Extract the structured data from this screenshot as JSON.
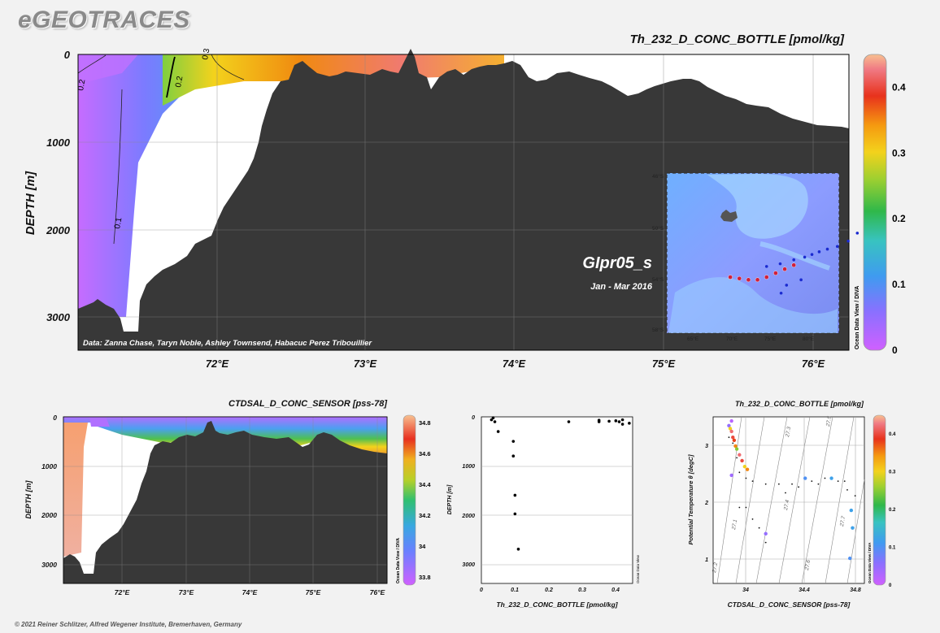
{
  "app": {
    "brand": "eGEOTRACES",
    "copyright": "© 2021 Reiner Schlitzer, Alfred Wegener Institute, Bremerhaven, Germany"
  },
  "odv_label": "Ocean Data View / DIVA",
  "odv_label_short": "Ocean Data View",
  "chart_data": [
    {
      "type": "heatmap",
      "id": "main-section",
      "title": "Th_232_D_CONC_BOTTLE [pmol/kg]",
      "ylabel": "DEPTH [m]",
      "xlim": [
        71.0,
        76.3
      ],
      "ylim": [
        3400,
        0
      ],
      "x_ticks": [
        "72°E",
        "73°E",
        "74°E",
        "75°E",
        "76°E"
      ],
      "x_tick_values": [
        72,
        73,
        74,
        75,
        76
      ],
      "y_ticks": [
        "0",
        "1000",
        "2000",
        "3000"
      ],
      "y_tick_values": [
        0,
        1000,
        2000,
        3000
      ],
      "colorbar": {
        "min": 0,
        "max": 0.45,
        "ticks": [
          "0",
          "0.1",
          "0.2",
          "0.3",
          "0.4"
        ],
        "tick_values": [
          0,
          0.1,
          0.2,
          0.3,
          0.4
        ]
      },
      "contour_labels": [
        "0.1",
        "0.2",
        "0.3",
        "0.2"
      ],
      "credit": "Data: Zanna Chase, Taryn Noble, Ashley Townsend, Habacuc Perez Tribouillier",
      "section_name": "GIpr05_s",
      "section_dates": "Jan - Mar 2016",
      "inset_map": {
        "lat_labels": [
          "46°S",
          "50°S",
          "54°S",
          "58°S"
        ],
        "lon_labels": [
          "65°E",
          "70°E",
          "75°E",
          "80°E"
        ],
        "stations_blue": [
          [
            85.3,
            49.3
          ],
          [
            84.0,
            50.5
          ],
          [
            83.0,
            51.1
          ],
          [
            81.8,
            51.5
          ],
          [
            80.7,
            51.7
          ],
          [
            79.8,
            51.9
          ],
          [
            79.0,
            52.1
          ],
          [
            78.2,
            52.3
          ],
          [
            77.0,
            52.5
          ],
          [
            75.5,
            52.8
          ],
          [
            74.0,
            53.0
          ],
          [
            77.8,
            54.0
          ],
          [
            76.2,
            54.4
          ],
          [
            75.6,
            55.0
          ]
        ],
        "stations_red": [
          [
            70.0,
            53.8
          ],
          [
            71.0,
            53.9
          ],
          [
            72.0,
            54.0
          ],
          [
            73.0,
            54.0
          ],
          [
            74.0,
            53.8
          ],
          [
            75.0,
            53.5
          ],
          [
            76.0,
            53.2
          ],
          [
            77.0,
            52.9
          ]
        ]
      }
    },
    {
      "type": "heatmap",
      "id": "salinity-section",
      "title": "CTDSAL_D_CONC_SENSOR [pss-78]",
      "ylabel": "DEPTH [m]",
      "xlim": [
        71.0,
        76.3
      ],
      "ylim": [
        3400,
        0
      ],
      "x_ticks": [
        "72°E",
        "73°E",
        "74°E",
        "75°E",
        "76°E"
      ],
      "x_tick_values": [
        72,
        73,
        74,
        75,
        76
      ],
      "y_ticks": [
        "0",
        "1000",
        "2000",
        "3000"
      ],
      "y_tick_values": [
        0,
        1000,
        2000,
        3000
      ],
      "colorbar": {
        "min": 33.75,
        "max": 34.85,
        "ticks": [
          "33.8",
          "34",
          "34.2",
          "34.4",
          "34.6",
          "34.8"
        ],
        "tick_values": [
          33.8,
          34.0,
          34.2,
          34.4,
          34.6,
          34.8
        ]
      }
    },
    {
      "type": "scatter",
      "id": "profile",
      "xlabel": "Th_232_D_CONC_BOTTLE [pmol/kg]",
      "ylabel": "DEPTH [m]",
      "xlim": [
        0,
        0.45
      ],
      "ylim": [
        3400,
        0
      ],
      "x_ticks": [
        "0",
        "0.1",
        "0.2",
        "0.3",
        "0.4"
      ],
      "x_tick_values": [
        0,
        0.1,
        0.2,
        0.3,
        0.4
      ],
      "y_ticks": [
        "0",
        "1000",
        "2000",
        "3000"
      ],
      "y_tick_values": [
        0,
        1000,
        2000,
        3000
      ],
      "points": [
        [
          0.03,
          60
        ],
        [
          0.035,
          20
        ],
        [
          0.04,
          100
        ],
        [
          0.05,
          300
        ],
        [
          0.095,
          500
        ],
        [
          0.095,
          800
        ],
        [
          0.1,
          1600
        ],
        [
          0.1,
          1980
        ],
        [
          0.11,
          2700
        ],
        [
          0.26,
          100
        ],
        [
          0.35,
          70
        ],
        [
          0.35,
          100
        ],
        [
          0.38,
          90
        ],
        [
          0.4,
          80
        ],
        [
          0.41,
          100
        ],
        [
          0.42,
          60
        ],
        [
          0.42,
          150
        ],
        [
          0.44,
          130
        ]
      ]
    },
    {
      "type": "scatter",
      "id": "ts-diagram",
      "title": "Th_232_D_CONC_BOTTLE [pmol/kg]",
      "xlabel": "CTDSAL_D_CONC_SENSOR [pss-78]",
      "ylabel": "Potential Temperature θ [degC]",
      "xlim": [
        33.7,
        34.85
      ],
      "ylim": [
        0.5,
        3.35
      ],
      "x_ticks": [
        "34",
        "34.4",
        "34.8"
      ],
      "x_tick_values": [
        34.0,
        34.4,
        34.8
      ],
      "y_ticks": [
        "1",
        "2",
        "3"
      ],
      "y_tick_values": [
        1,
        2,
        3
      ],
      "density_labels": [
        "27.1",
        "27.2",
        "27.3",
        "27.4",
        "27.5",
        "27.6",
        "27.7"
      ],
      "colorbar": {
        "min": 0,
        "max": 0.45,
        "ticks": [
          "0",
          "0.1",
          "0.2",
          "0.3",
          "0.4"
        ],
        "tick_values": [
          0,
          0.1,
          0.2,
          0.3,
          0.4
        ]
      },
      "points": [
        [
          33.82,
          3.2,
          0.05
        ],
        [
          33.83,
          3.15,
          0.3
        ],
        [
          33.84,
          3.1,
          0.42
        ],
        [
          33.85,
          3.0,
          0.4
        ],
        [
          33.86,
          2.95,
          0.38
        ],
        [
          33.87,
          2.85,
          0.35
        ],
        [
          33.88,
          2.8,
          0.25
        ],
        [
          33.9,
          2.7,
          0.42
        ],
        [
          33.92,
          2.6,
          0.4
        ],
        [
          33.94,
          2.5,
          0.3
        ],
        [
          33.96,
          2.45,
          0.35
        ],
        [
          34.4,
          2.3,
          0.1
        ],
        [
          34.6,
          2.3,
          0.12
        ],
        [
          34.75,
          1.75,
          0.12
        ],
        [
          34.76,
          1.45,
          0.12
        ],
        [
          34.74,
          0.93,
          0.1
        ],
        [
          33.84,
          2.35,
          0.04
        ],
        [
          34.1,
          1.35,
          0.05
        ],
        [
          33.84,
          3.28,
          0.02
        ]
      ],
      "small_points": [
        [
          33.82,
          3.0
        ],
        [
          33.85,
          2.9
        ],
        [
          33.88,
          2.65
        ],
        [
          33.9,
          2.4
        ],
        [
          33.95,
          2.3
        ],
        [
          34.0,
          2.25
        ],
        [
          34.1,
          2.2
        ],
        [
          34.2,
          2.2
        ],
        [
          34.3,
          2.2
        ],
        [
          34.45,
          2.25
        ],
        [
          34.55,
          2.3
        ],
        [
          34.65,
          2.25
        ],
        [
          34.72,
          2.1
        ],
        [
          33.95,
          1.8
        ],
        [
          34.0,
          1.6
        ],
        [
          34.05,
          1.45
        ],
        [
          33.9,
          1.8
        ],
        [
          34.1,
          1.2
        ],
        [
          34.25,
          2.05
        ],
        [
          34.35,
          2.15
        ],
        [
          34.5,
          2.2
        ],
        [
          34.7,
          2.25
        ],
        [
          34.78,
          2.0
        ]
      ]
    }
  ]
}
